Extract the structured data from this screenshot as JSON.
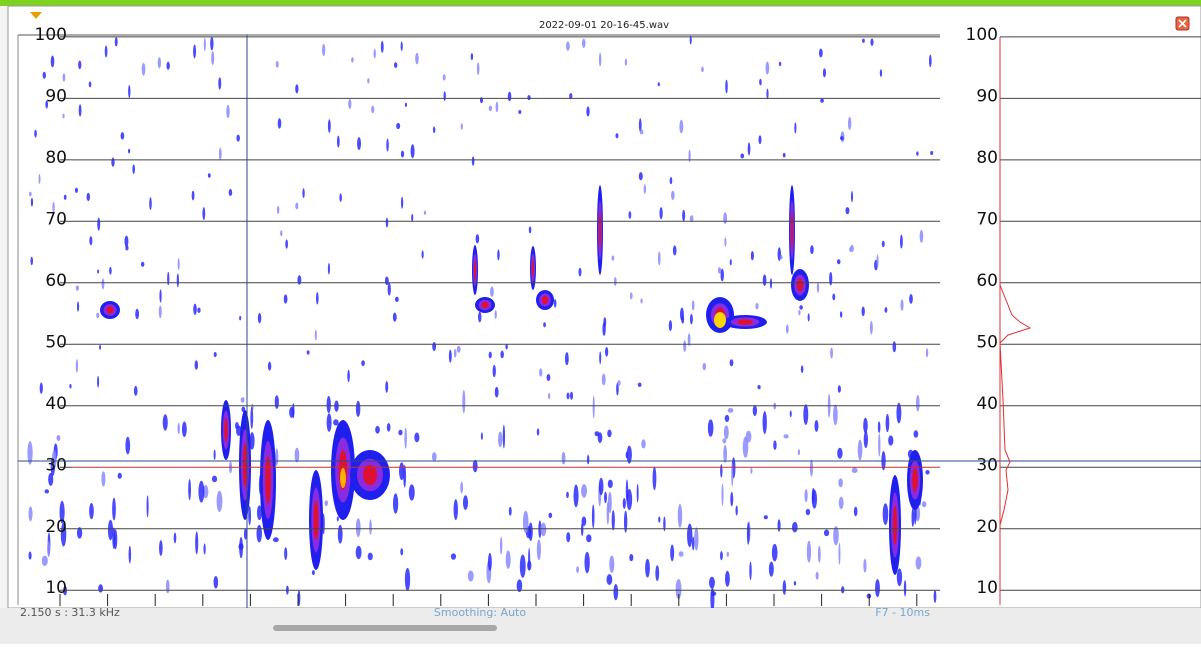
{
  "window": {
    "title": "2022-09-01 20-16-45.wav"
  },
  "spectrogram": {
    "ylim": [
      7.6,
      100.3
    ],
    "yticks": [
      100,
      90,
      80,
      70,
      60,
      50,
      40,
      30,
      20,
      10
    ],
    "cursor_readout": "2.150 s : 31.3 kHz",
    "smoothing": "Smoothing: Auto",
    "frame": "F7 - 10ms"
  },
  "profile": {
    "ylim": [
      7.6,
      100.3
    ],
    "yticks": [
      100,
      90,
      80,
      70,
      60,
      50,
      40,
      30,
      20,
      10
    ]
  }
}
